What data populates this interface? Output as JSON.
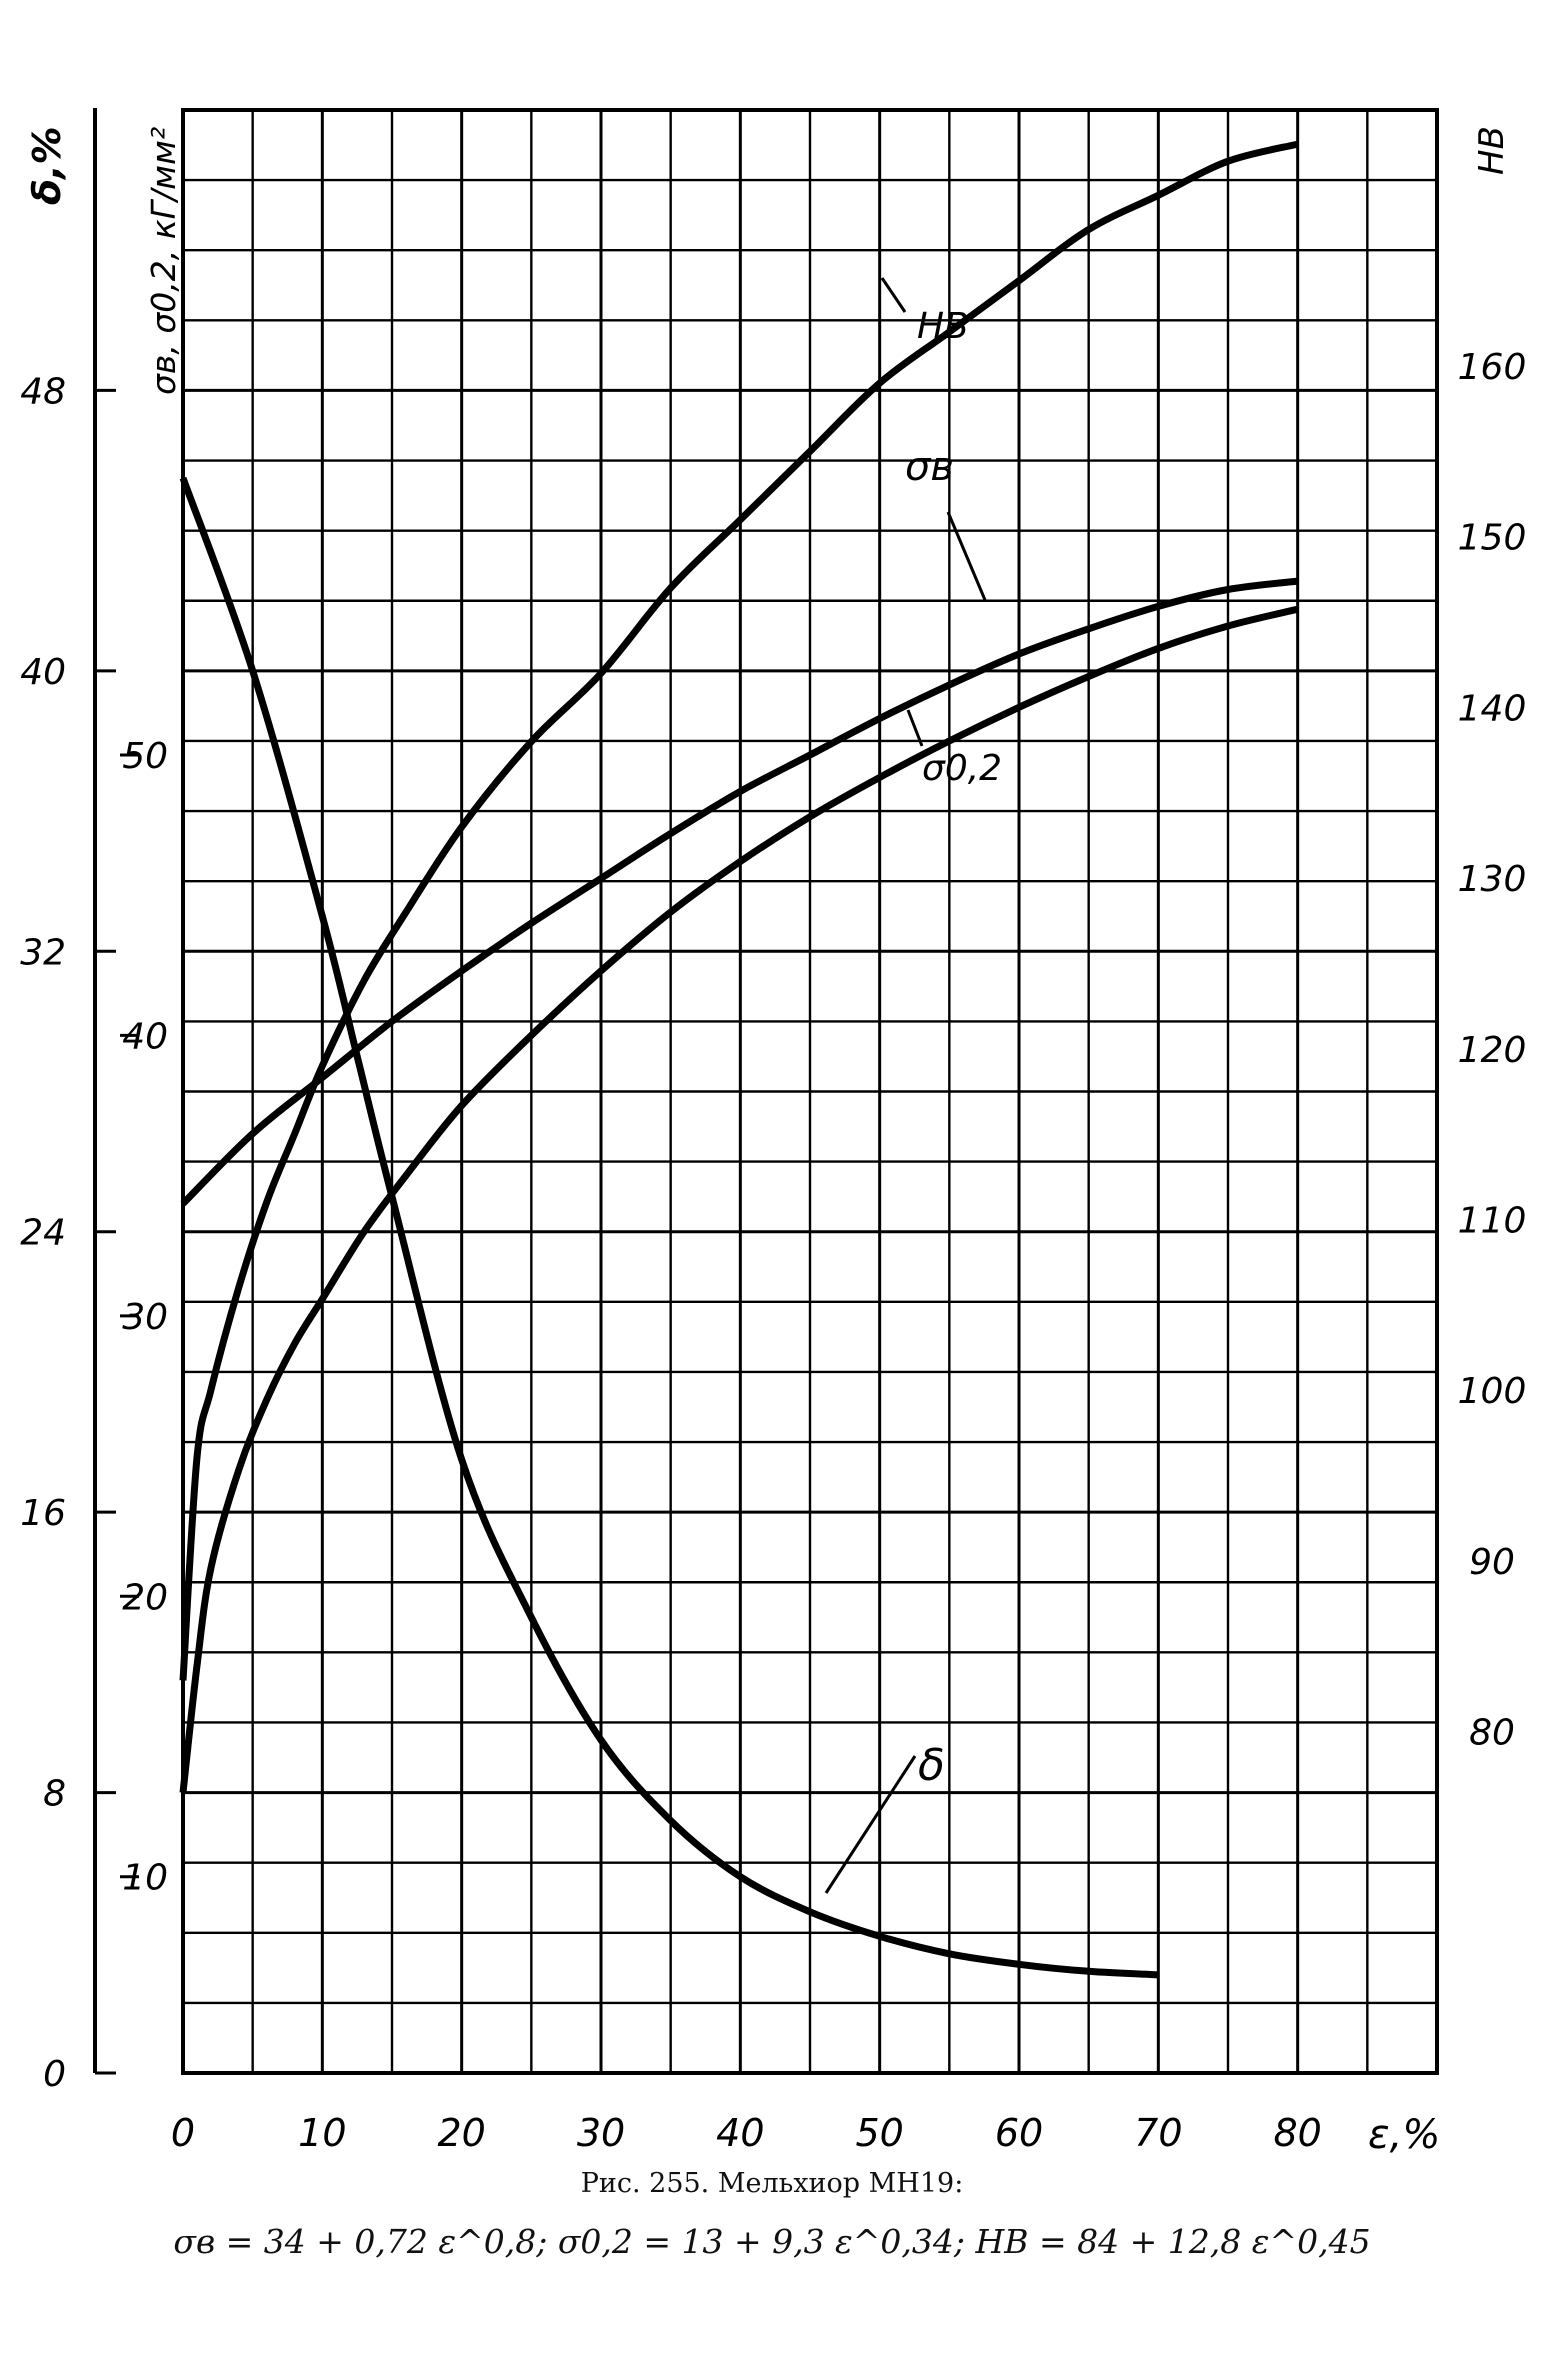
{
  "caption": {
    "line1": "Рис. 255. Мельхиор МН19:",
    "line2": "σв = 34 + 0,72 ε^0,8;  σ0,2 = 13 + 9,3 ε^0,34;  HB = 84 + 12,8 ε^0,45"
  },
  "chart_data": {
    "type": "line",
    "grid": true,
    "x": {
      "label": "ε,%",
      "range": [
        0,
        90
      ],
      "ticks": [
        "0",
        "10",
        "20",
        "30",
        "40",
        "50",
        "60",
        "70",
        "80"
      ]
    },
    "y_left_outer": {
      "label": "δ,%",
      "range": [
        0,
        56
      ],
      "ticks": [
        "0",
        "8",
        "16",
        "24",
        "32",
        "40",
        "48"
      ]
    },
    "y_left_inner": {
      "label": "σв, σ0,2, кГ/мм²",
      "range": [
        3,
        73
      ],
      "ticks": [
        "10",
        "20",
        "30",
        "40",
        "50"
      ]
    },
    "y_right": {
      "label": "HB",
      "range": [
        60,
        175
      ],
      "ticks": [
        "80",
        "90",
        "100",
        "110",
        "120",
        "130",
        "140",
        "150",
        "160"
      ]
    },
    "series": [
      {
        "name": "HB",
        "axis": "y_right",
        "x": [
          0,
          1,
          2,
          4,
          6,
          8,
          10,
          13,
          16,
          20,
          25,
          30,
          35,
          40,
          45,
          50,
          55,
          60,
          65,
          70,
          75,
          80
        ],
        "y": [
          83,
          96,
          100,
          106,
          111,
          115,
          119,
          124,
          128,
          133,
          138,
          142,
          147,
          151,
          155,
          159,
          162,
          165,
          168,
          170,
          172,
          173
        ]
      },
      {
        "name": "σв",
        "axis": "y_left_inner",
        "x": [
          0,
          5,
          10,
          15,
          20,
          25,
          30,
          35,
          40,
          45,
          50,
          55,
          60,
          65,
          70,
          75,
          80
        ],
        "y": [
          34.0,
          36.5,
          38.5,
          40.5,
          42.3,
          44.0,
          45.6,
          47.2,
          48.7,
          50.0,
          51.3,
          52.5,
          53.6,
          54.5,
          55.3,
          55.9,
          56.2
        ]
      },
      {
        "name": "σ0,2",
        "axis": "y_left_inner",
        "x": [
          0,
          1,
          2,
          4,
          6,
          8,
          10,
          13,
          16,
          20,
          25,
          30,
          35,
          40,
          45,
          50,
          55,
          60,
          65,
          70,
          75,
          80
        ],
        "y": [
          13,
          17.5,
          21,
          24.5,
          27,
          29,
          30.6,
          33,
          35,
          37.5,
          40,
          42.3,
          44.4,
          46.2,
          47.8,
          49.2,
          50.5,
          51.7,
          52.8,
          53.8,
          54.6,
          55.2
        ]
      },
      {
        "name": "δ",
        "axis": "y_left_outer",
        "x": [
          0,
          5,
          10,
          12.5,
          15,
          20,
          25,
          30,
          35,
          40,
          45,
          50,
          55,
          60,
          65,
          70
        ],
        "y": [
          45.5,
          40,
          33,
          29,
          25,
          17.5,
          13,
          9.5,
          7.2,
          5.6,
          4.6,
          3.9,
          3.4,
          3.1,
          2.9,
          2.8
        ]
      }
    ]
  }
}
